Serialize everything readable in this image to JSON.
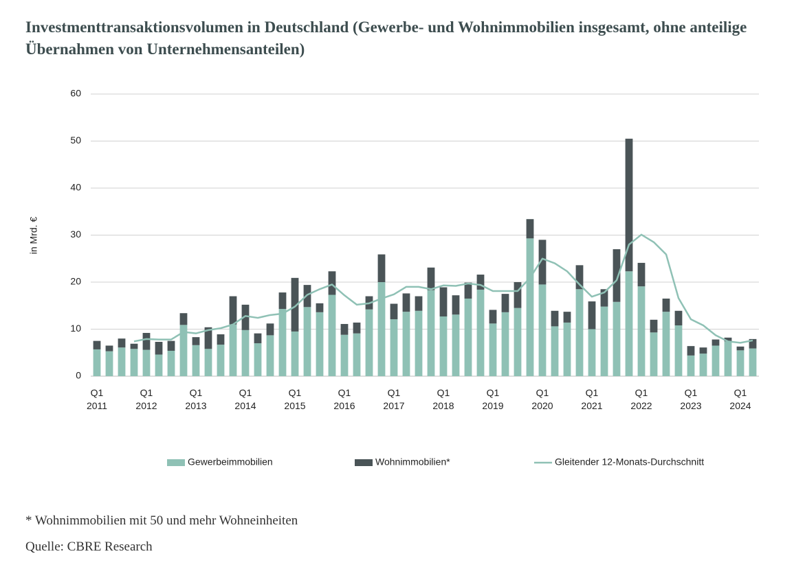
{
  "chart_data": {
    "type": "bar",
    "stacked": true,
    "title": "Investmenttransaktionsvolumen in Deutschland (Gewerbe- und Wohnimmobilien insgesamt, ohne anteilige Übernahmen von Unternehmensanteilen)",
    "y_label": "in Mrd. €",
    "footnote": "* Wohnimmobilien mit 50 und mehr Wohneinheiten",
    "source": "Quelle: CBRE Research",
    "categories": [
      "Q1 2011",
      null,
      null,
      null,
      "Q1 2012",
      null,
      null,
      null,
      "Q1 2013",
      null,
      null,
      null,
      "Q1 2014",
      null,
      null,
      null,
      "Q1 2015",
      null,
      null,
      null,
      "Q1 2016",
      null,
      null,
      null,
      "Q1 2017",
      null,
      null,
      null,
      "Q1 2018",
      null,
      null,
      null,
      "Q1 2019",
      null,
      null,
      null,
      "Q1 2020",
      null,
      null,
      null,
      "Q1 2021",
      null,
      null,
      null,
      "Q1 2022",
      null,
      null,
      null,
      "Q1 2023",
      null,
      null,
      null,
      "Q1 2024",
      null
    ],
    "series": [
      {
        "name": "Gewerbeimmobilien",
        "color": "#8fc1b5",
        "values": [
          5.7,
          5.3,
          6.1,
          5.8,
          5.6,
          4.6,
          5.4,
          10.9,
          6.6,
          5.8,
          6.7,
          11.0,
          9.8,
          7.0,
          8.7,
          14.3,
          9.5,
          14.7,
          13.6,
          17.3,
          8.8,
          9.1,
          14.2,
          20.0,
          12.1,
          13.7,
          13.9,
          18.3,
          12.7,
          13.1,
          16.5,
          18.4,
          11.2,
          13.6,
          14.5,
          29.3,
          19.5,
          10.6,
          11.4,
          18.5,
          10.0,
          14.8,
          15.8,
          22.3,
          19.1,
          9.3,
          13.7,
          10.8,
          4.4,
          4.8,
          6.5,
          7.4,
          5.5,
          5.9
        ]
      },
      {
        "name": "Wohnimmobilien*",
        "color": "#4a5457",
        "values": [
          1.8,
          1.2,
          1.9,
          1.1,
          3.6,
          2.7,
          2.1,
          2.5,
          1.7,
          4.6,
          2.2,
          6.0,
          5.4,
          2.1,
          2.5,
          3.5,
          11.4,
          4.7,
          1.9,
          5.0,
          2.3,
          2.3,
          2.8,
          5.9,
          3.3,
          3.9,
          3.1,
          4.8,
          6.2,
          4.1,
          3.4,
          3.2,
          2.9,
          3.9,
          5.5,
          4.1,
          9.5,
          3.3,
          2.3,
          5.1,
          5.9,
          3.7,
          11.2,
          28.2,
          5.0,
          2.7,
          2.8,
          3.1,
          2.0,
          1.3,
          1.3,
          0.8,
          0.8,
          2.0
        ]
      },
      {
        "name": "Gleitender 12-Monats-Durchschnitt",
        "color": "#8fc1b5",
        "type": "line",
        "values": [
          null,
          null,
          null,
          7.4,
          7.9,
          7.8,
          7.8,
          9.4,
          9.1,
          9.8,
          10.2,
          11.0,
          12.8,
          12.4,
          13.0,
          13.3,
          14.8,
          17.3,
          18.5,
          19.5,
          17.2,
          15.2,
          15.5,
          16.5,
          17.4,
          19.0,
          19.0,
          18.5,
          19.3,
          19.2,
          19.7,
          19.4,
          18.1,
          18.1,
          18.1,
          20.9,
          25.0,
          24.0,
          22.3,
          19.5,
          16.9,
          17.8,
          20.4,
          28.0,
          30.1,
          28.5,
          25.9,
          16.6,
          12.1,
          10.8,
          8.7,
          7.4,
          7.1,
          7.6
        ]
      }
    ],
    "ylim": [
      0,
      60
    ],
    "yticks": [
      0,
      10,
      20,
      30,
      40,
      50,
      60
    ],
    "grid": true,
    "legend": "bottom"
  }
}
